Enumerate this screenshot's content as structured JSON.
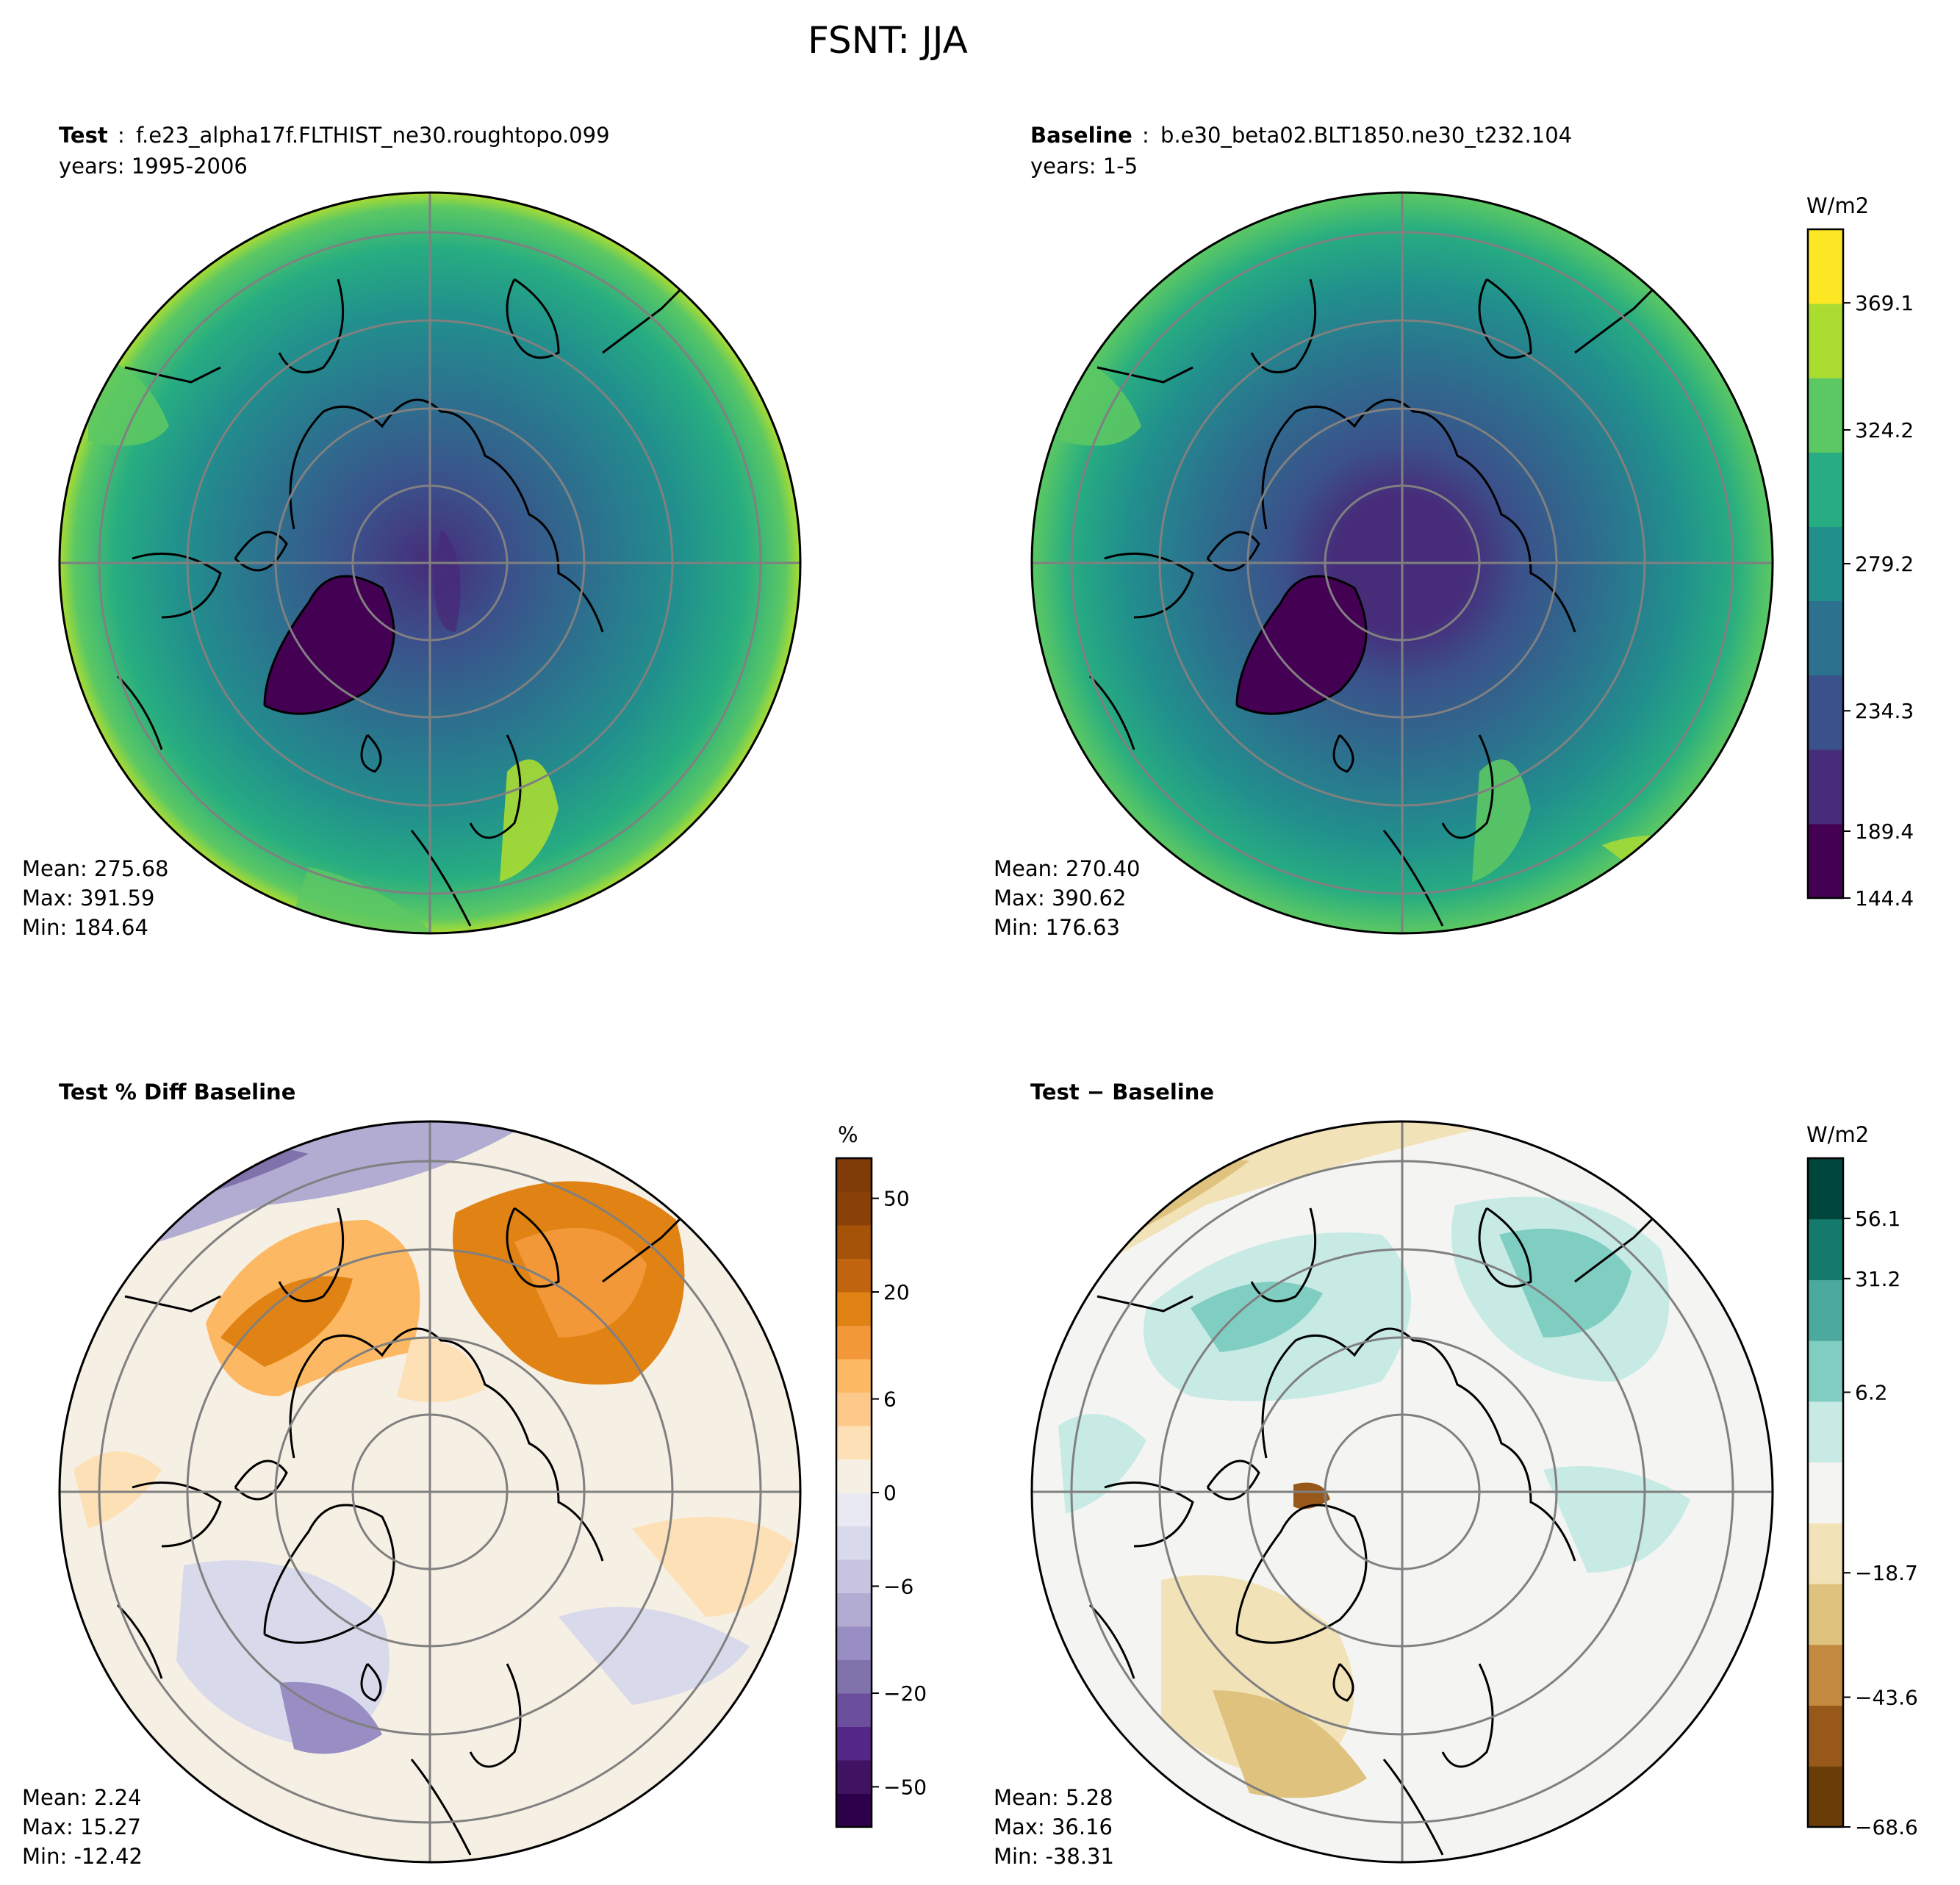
{
  "figure": {
    "title": "FSNT: JJA"
  },
  "panels": {
    "test": {
      "label": "Test",
      "sep": ":",
      "case": "f.e23_alpha17f.FLTHIST_ne30.roughtopo.099",
      "years": "years: 1995-2006",
      "stats": [
        "Mean: 275.68",
        "Max: 391.59",
        "Min: 184.64"
      ]
    },
    "baseline": {
      "label": "Baseline",
      "sep": ":",
      "case": "b.e30_beta02.BLT1850.ne30_t232.104",
      "years": "years: 1-5",
      "stats": [
        "Mean: 270.40",
        "Max: 390.62",
        "Min: 176.63"
      ]
    },
    "pctdiff": {
      "title": "Test % Diff Baseline",
      "stats": [
        "Mean:  2.24",
        "Max: 15.27",
        "Min: -12.42"
      ]
    },
    "diff": {
      "title": "Test − Baseline",
      "stats": [
        "Mean:  5.28",
        "Max: 36.16",
        "Min: -38.31"
      ]
    }
  },
  "colorbars": {
    "main": {
      "units": "W/m2",
      "ticks": [
        "144.4",
        "189.4",
        "234.3",
        "279.2",
        "324.2",
        "369.1"
      ],
      "colors": [
        "#440154",
        "#472c7a",
        "#3b518b",
        "#2c718e",
        "#21908d",
        "#27ad81",
        "#5cc863",
        "#aadc32",
        "#fde725"
      ]
    },
    "pct": {
      "units": "%",
      "ticks": [
        "−50",
        "−20",
        "−6",
        "0",
        "6",
        "20",
        "50"
      ],
      "colors": [
        "#2d004b",
        "#3f1262",
        "#542788",
        "#6b4f9c",
        "#8073ac",
        "#998ec3",
        "#b2abd2",
        "#c8c3e0",
        "#d8daeb",
        "#e8e9f2",
        "#f6efe3",
        "#fee0b6",
        "#fdc98a",
        "#fdb863",
        "#f29838",
        "#e08214",
        "#c26510",
        "#a6530a",
        "#8a4107",
        "#7f3b08"
      ]
    },
    "diff": {
      "units": "W/m2",
      "ticks": [
        "−68.6",
        "−43.6",
        "−18.7",
        "6.2",
        "31.2",
        "56.1"
      ],
      "colors": [
        "#6a3d08",
        "#97581a",
        "#c48a3f",
        "#dfc27d",
        "#f2e2b8",
        "#f4f5f2",
        "#c7eae5",
        "#80cdc1",
        "#4ba99d",
        "#147a6c",
        "#01463c"
      ]
    }
  },
  "chart_data": [
    {
      "type": "heatmap",
      "projection": "north-polar-stereographic",
      "title": "Test : f.e23_alpha17f.FLTHIST_ne30.roughtopo.099",
      "variable": "FSNT",
      "season": "JJA",
      "units": "W/m2",
      "mean": 275.68,
      "max": 391.59,
      "min": 184.64,
      "levels": [
        144.4,
        189.4,
        234.3,
        279.2,
        324.2,
        369.1
      ]
    },
    {
      "type": "heatmap",
      "projection": "north-polar-stereographic",
      "title": "Baseline : b.e30_beta02.BLT1850.ne30_t232.104",
      "variable": "FSNT",
      "season": "JJA",
      "units": "W/m2",
      "mean": 270.4,
      "max": 390.62,
      "min": 176.63,
      "levels": [
        144.4,
        189.4,
        234.3,
        279.2,
        324.2,
        369.1
      ]
    },
    {
      "type": "heatmap",
      "projection": "north-polar-stereographic",
      "title": "Test % Diff Baseline",
      "units": "%",
      "mean": 2.24,
      "max": 15.27,
      "min": -12.42,
      "levels": [
        -50,
        -20,
        -6,
        0,
        6,
        20,
        50
      ]
    },
    {
      "type": "heatmap",
      "projection": "north-polar-stereographic",
      "title": "Test − Baseline",
      "units": "W/m2",
      "mean": 5.28,
      "max": 36.16,
      "min": -38.31,
      "levels": [
        -68.6,
        -43.6,
        -18.7,
        6.2,
        31.2,
        56.1
      ]
    }
  ]
}
